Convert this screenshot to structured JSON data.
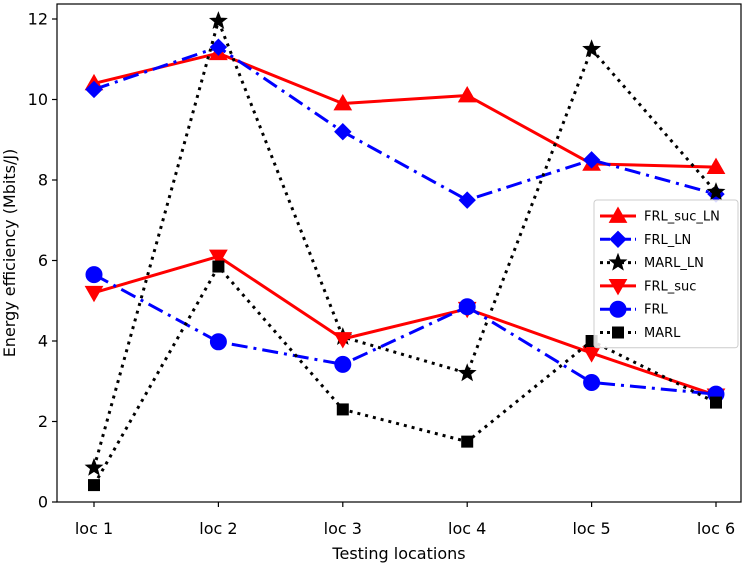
{
  "chart_data": {
    "type": "line",
    "title": "",
    "xlabel": "Testing locations",
    "ylabel": "Energy efficiency (Mbits/J)",
    "categories": [
      "loc 1",
      "loc 2",
      "loc 3",
      "loc 4",
      "loc 5",
      "loc 6"
    ],
    "ylim": [
      0,
      12
    ],
    "yticks": [
      "0",
      "2",
      "4",
      "6",
      "8",
      "10",
      "12"
    ],
    "legend_position": "center-right",
    "series": [
      {
        "name": "FRL_suc_LN",
        "values": [
          10.4,
          11.15,
          9.9,
          10.1,
          8.4,
          8.32
        ],
        "color": "#ff0000",
        "marker": "triangle-up",
        "line": "solid"
      },
      {
        "name": "FRL_LN",
        "values": [
          10.25,
          11.3,
          9.2,
          7.5,
          8.5,
          7.65
        ],
        "color": "#0000ff",
        "marker": "diamond",
        "line": "dashdot"
      },
      {
        "name": "MARL_LN",
        "values": [
          0.85,
          11.95,
          4.1,
          3.2,
          11.25,
          7.7
        ],
        "color": "#000000",
        "marker": "star",
        "line": "dotted"
      },
      {
        "name": "FRL_suc",
        "values": [
          5.2,
          6.1,
          4.05,
          4.8,
          3.7,
          2.65
        ],
        "color": "#ff0000",
        "marker": "triangle-down",
        "line": "solid"
      },
      {
        "name": "FRL",
        "values": [
          5.65,
          3.98,
          3.42,
          4.85,
          2.97,
          2.68
        ],
        "color": "#0000ff",
        "marker": "circle",
        "line": "dashdot"
      },
      {
        "name": "MARL",
        "values": [
          0.42,
          5.85,
          2.3,
          1.5,
          4.0,
          2.47
        ],
        "color": "#000000",
        "marker": "square",
        "line": "dotted"
      }
    ]
  }
}
